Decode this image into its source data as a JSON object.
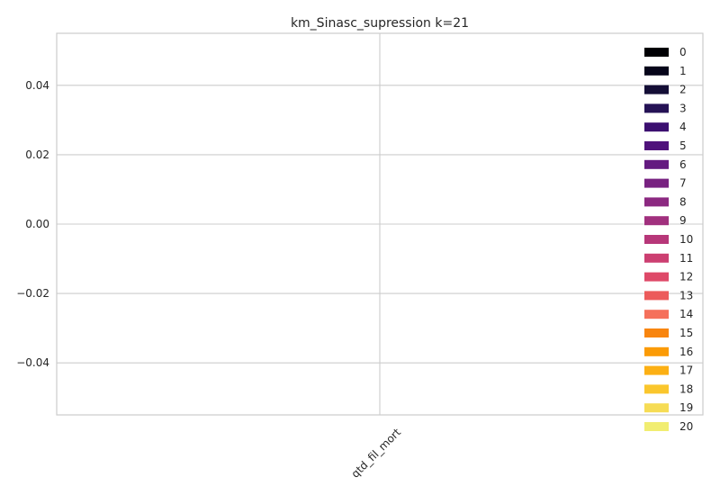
{
  "chart_data": {
    "type": "bar",
    "title": "km_Sinasc_supression k=21",
    "categories": [
      "qtd_fil_mort"
    ],
    "xlabel": "",
    "ylabel": "",
    "ylim": [
      -0.055,
      0.055
    ],
    "yticks": [
      0.04,
      0.02,
      0.0,
      -0.02,
      -0.04
    ],
    "ytick_labels": [
      "0.04",
      "0.02",
      "0.00",
      "−0.02",
      "−0.04"
    ],
    "grid": true,
    "legend_position": "right",
    "series": [
      {
        "name": "0",
        "values": [
          0
        ],
        "color": "#000004"
      },
      {
        "name": "1",
        "values": [
          0
        ],
        "color": "#06051a"
      },
      {
        "name": "2",
        "values": [
          0
        ],
        "color": "#140e36"
      },
      {
        "name": "3",
        "values": [
          0
        ],
        "color": "#251255"
      },
      {
        "name": "4",
        "values": [
          0
        ],
        "color": "#3b0f70"
      },
      {
        "name": "5",
        "values": [
          0
        ],
        "color": "#4f127b"
      },
      {
        "name": "6",
        "values": [
          0
        ],
        "color": "#641a80"
      },
      {
        "name": "7",
        "values": [
          0
        ],
        "color": "#782281"
      },
      {
        "name": "8",
        "values": [
          0
        ],
        "color": "#8c2981"
      },
      {
        "name": "9",
        "values": [
          0
        ],
        "color": "#a1307e"
      },
      {
        "name": "10",
        "values": [
          0
        ],
        "color": "#b73779"
      },
      {
        "name": "11",
        "values": [
          0
        ],
        "color": "#cc3f71"
      },
      {
        "name": "12",
        "values": [
          0
        ],
        "color": "#de4968"
      },
      {
        "name": "13",
        "values": [
          0
        ],
        "color": "#ec5b5b"
      },
      {
        "name": "14",
        "values": [
          0
        ],
        "color": "#f5705b"
      },
      {
        "name": "15",
        "values": [
          0
        ],
        "color": "#f8850f"
      },
      {
        "name": "16",
        "values": [
          0
        ],
        "color": "#fb9b06"
      },
      {
        "name": "17",
        "values": [
          0
        ],
        "color": "#fcb014"
      },
      {
        "name": "18",
        "values": [
          0
        ],
        "color": "#fac62d"
      },
      {
        "name": "19",
        "values": [
          0
        ],
        "color": "#f6dc55"
      },
      {
        "name": "20",
        "values": [
          0
        ],
        "color": "#f1ed71"
      }
    ]
  }
}
